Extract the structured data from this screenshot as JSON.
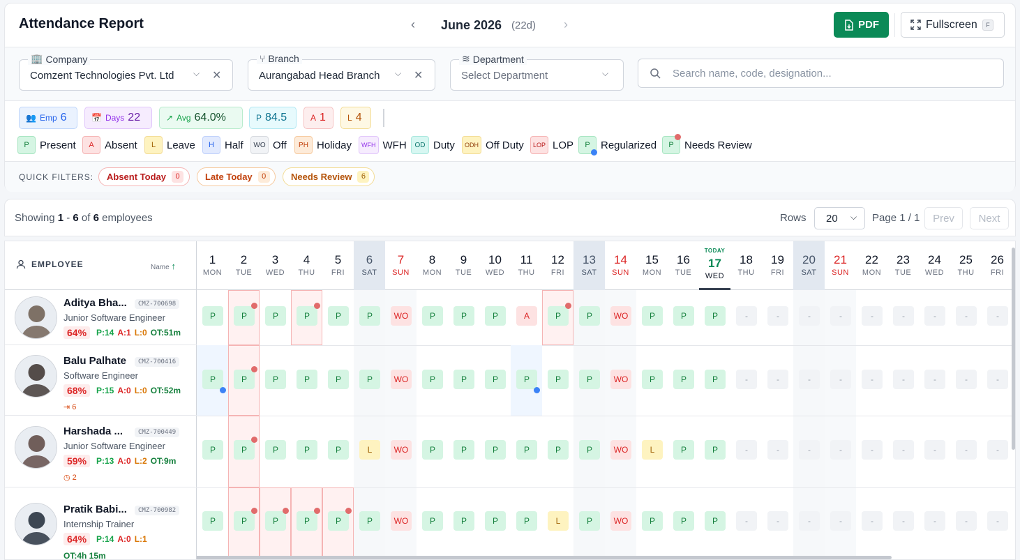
{
  "header": {
    "title": "Attendance Report",
    "month": "June 2026",
    "month_days": "(22d)",
    "prev_icon": "chevron-left-icon",
    "next_icon": "chevron-right-icon",
    "pdf_label": "PDF",
    "fullscreen_label": "Fullscreen",
    "fullscreen_key": "F"
  },
  "filters": {
    "company": {
      "label": "Company",
      "value": "Comzent Technologies Pvt. Ltd"
    },
    "branch": {
      "label": "Branch",
      "value": "Aurangabad Head Branch"
    },
    "department": {
      "label": "Department",
      "placeholder": "Select Department"
    },
    "search_placeholder": "Search name, code, designation..."
  },
  "stats": {
    "emp": {
      "label": "Emp",
      "value": "6"
    },
    "days": {
      "label": "Days",
      "value": "22"
    },
    "avg": {
      "label": "Avg",
      "value": "64.0%"
    },
    "present": {
      "label": "P",
      "value": "84.5"
    },
    "absent": {
      "label": "A",
      "value": "1"
    },
    "leave": {
      "label": "L",
      "value": "4"
    }
  },
  "legend": [
    {
      "code": "P",
      "label": "Present"
    },
    {
      "code": "A",
      "label": "Absent"
    },
    {
      "code": "L",
      "label": "Leave"
    },
    {
      "code": "H",
      "label": "Half"
    },
    {
      "code": "WO",
      "label": "Off"
    },
    {
      "code": "PH",
      "label": "Holiday"
    },
    {
      "code": "WFH",
      "label": "WFH"
    },
    {
      "code": "OD",
      "label": "Duty"
    },
    {
      "code": "ODH",
      "label": "Off Duty"
    },
    {
      "code": "LOP",
      "label": "LOP"
    },
    {
      "code": "P",
      "label": "Regularized"
    },
    {
      "code": "P",
      "label": "Needs Review"
    }
  ],
  "quick_filters": {
    "label": "QUICK FILTERS:",
    "absent_today": {
      "label": "Absent Today",
      "count": "0"
    },
    "late_today": {
      "label": "Late Today",
      "count": "0"
    },
    "needs_review": {
      "label": "Needs Review",
      "count": "6"
    }
  },
  "pager": {
    "showing_prefix": "Showing",
    "from": "1",
    "dash": "-",
    "to": "6",
    "of": "of",
    "total": "6",
    "suffix": "employees",
    "rows_label": "Rows",
    "rows_value": "20",
    "page_info": "Page 1 / 1",
    "prev": "Prev",
    "next": "Next"
  },
  "table": {
    "employee_header": "EMPLOYEE",
    "sort_label": "Name",
    "today_label": "TODAY",
    "days": [
      {
        "n": "1",
        "w": "MON"
      },
      {
        "n": "2",
        "w": "TUE"
      },
      {
        "n": "3",
        "w": "WED"
      },
      {
        "n": "4",
        "w": "THU"
      },
      {
        "n": "5",
        "w": "FRI"
      },
      {
        "n": "6",
        "w": "SAT"
      },
      {
        "n": "7",
        "w": "SUN"
      },
      {
        "n": "8",
        "w": "MON"
      },
      {
        "n": "9",
        "w": "TUE"
      },
      {
        "n": "10",
        "w": "WED"
      },
      {
        "n": "11",
        "w": "THU"
      },
      {
        "n": "12",
        "w": "FRI"
      },
      {
        "n": "13",
        "w": "SAT"
      },
      {
        "n": "14",
        "w": "SUN"
      },
      {
        "n": "15",
        "w": "MON"
      },
      {
        "n": "16",
        "w": "TUE"
      },
      {
        "n": "17",
        "w": "WED"
      },
      {
        "n": "18",
        "w": "THU"
      },
      {
        "n": "19",
        "w": "FRI"
      },
      {
        "n": "20",
        "w": "SAT"
      },
      {
        "n": "21",
        "w": "SUN"
      },
      {
        "n": "22",
        "w": "MON"
      },
      {
        "n": "23",
        "w": "TUE"
      },
      {
        "n": "24",
        "w": "WED"
      },
      {
        "n": "25",
        "w": "THU"
      },
      {
        "n": "26",
        "w": "FRI"
      }
    ],
    "employees": [
      {
        "name": "Aditya Bha...",
        "code": "CMZ-700698",
        "designation": "Junior Software Engineer",
        "pct": "64%",
        "p": "P:14",
        "a": "A:1",
        "l": "L:0",
        "ot": "OT:51m",
        "extra": "",
        "cells": [
          "P",
          "P",
          "P",
          "P",
          "P",
          "P",
          "WO",
          "P",
          "P",
          "P",
          "A",
          "P",
          "P",
          "WO",
          "P",
          "P",
          "P",
          "-",
          "-",
          "-",
          "-",
          "-",
          "-",
          "-",
          "-",
          "-"
        ],
        "review": [
          2,
          4,
          12
        ],
        "regularized": []
      },
      {
        "name": "Balu Palhate",
        "code": "CMZ-700416",
        "designation": "Software Engineer",
        "pct": "68%",
        "p": "P:15",
        "a": "A:0",
        "l": "L:0",
        "ot": "OT:52m",
        "extra": "⇥ 6",
        "cells": [
          "P",
          "P",
          "P",
          "P",
          "P",
          "P",
          "WO",
          "P",
          "P",
          "P",
          "P",
          "P",
          "P",
          "WO",
          "P",
          "P",
          "P",
          "-",
          "-",
          "-",
          "-",
          "-",
          "-",
          "-",
          "-",
          "-"
        ],
        "review": [
          2
        ],
        "regularized": [
          1,
          11
        ]
      },
      {
        "name": "Harshada ...",
        "code": "CMZ-700449",
        "designation": "Junior Software Engineer",
        "pct": "59%",
        "p": "P:13",
        "a": "A:0",
        "l": "L:2",
        "ot": "OT:9m",
        "extra": "◷ 2",
        "cells": [
          "P",
          "P",
          "P",
          "P",
          "P",
          "L",
          "WO",
          "P",
          "P",
          "P",
          "P",
          "P",
          "P",
          "WO",
          "L",
          "P",
          "P",
          "-",
          "-",
          "-",
          "-",
          "-",
          "-",
          "-",
          "-",
          "-"
        ],
        "review": [
          2
        ],
        "regularized": []
      },
      {
        "name": "Pratik Babi...",
        "code": "CMZ-700982",
        "designation": "Internship Trainer",
        "pct": "64%",
        "p": "P:14",
        "a": "A:0",
        "l": "L:1",
        "ot": "OT:4h 15m",
        "extra": "",
        "cells": [
          "P",
          "P",
          "P",
          "P",
          "P",
          "P",
          "WO",
          "P",
          "P",
          "P",
          "P",
          "L",
          "P",
          "WO",
          "P",
          "P",
          "P",
          "-",
          "-",
          "-",
          "-",
          "-",
          "-",
          "-",
          "-",
          "-"
        ],
        "review": [
          2,
          3,
          4,
          5
        ],
        "regularized": []
      }
    ]
  },
  "colors": {
    "accent": "#0b8a57",
    "present_bg": "#d5f5e3",
    "absent_bg": "#fde2e2",
    "leave_bg": "#fef3c0",
    "review_dot": "#e16b6b",
    "regularized_dot": "#3b82f6"
  }
}
